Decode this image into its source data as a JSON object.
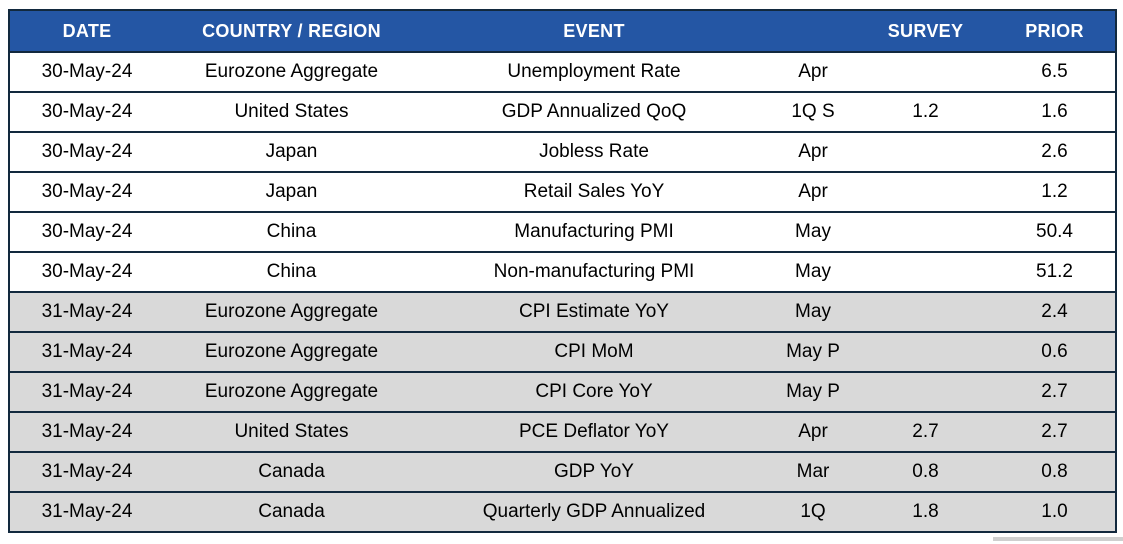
{
  "colors": {
    "header_bg": "#2456A4",
    "header_text": "#FFFFFF",
    "row_bg_white": "#FFFFFF",
    "row_bg_gray": "#D9D9D9",
    "border": "#12293E",
    "cell_text": "#000000"
  },
  "chart_data": {
    "type": "table",
    "title": "",
    "columns": [
      {
        "key": "date",
        "label": "DATE"
      },
      {
        "key": "country",
        "label": "COUNTRY / REGION"
      },
      {
        "key": "event",
        "label": "EVENT"
      },
      {
        "key": "period",
        "label": ""
      },
      {
        "key": "survey",
        "label": "SURVEY"
      },
      {
        "key": "prior",
        "label": "PRIOR"
      }
    ],
    "rows": [
      {
        "date": "30-May-24",
        "country": "Eurozone Aggregate",
        "event": "Unemployment Rate",
        "period": "Apr",
        "survey": "",
        "prior": "6.5",
        "shade": "white"
      },
      {
        "date": "30-May-24",
        "country": "United States",
        "event": "GDP Annualized QoQ",
        "period": "1Q S",
        "survey": "1.2",
        "prior": "1.6",
        "shade": "white"
      },
      {
        "date": "30-May-24",
        "country": "Japan",
        "event": "Jobless Rate",
        "period": "Apr",
        "survey": "",
        "prior": "2.6",
        "shade": "white"
      },
      {
        "date": "30-May-24",
        "country": "Japan",
        "event": "Retail Sales YoY",
        "period": "Apr",
        "survey": "",
        "prior": "1.2",
        "shade": "white"
      },
      {
        "date": "30-May-24",
        "country": "China",
        "event": "Manufacturing PMI",
        "period": "May",
        "survey": "",
        "prior": "50.4",
        "shade": "white"
      },
      {
        "date": "30-May-24",
        "country": "China",
        "event": "Non-manufacturing PMI",
        "period": "May",
        "survey": "",
        "prior": "51.2",
        "shade": "white"
      },
      {
        "date": "31-May-24",
        "country": "Eurozone Aggregate",
        "event": "CPI Estimate YoY",
        "period": "May",
        "survey": "",
        "prior": "2.4",
        "shade": "gray"
      },
      {
        "date": "31-May-24",
        "country": "Eurozone Aggregate",
        "event": "CPI MoM",
        "period": "May P",
        "survey": "",
        "prior": "0.6",
        "shade": "gray"
      },
      {
        "date": "31-May-24",
        "country": "Eurozone Aggregate",
        "event": "CPI Core YoY",
        "period": "May P",
        "survey": "",
        "prior": "2.7",
        "shade": "gray"
      },
      {
        "date": "31-May-24",
        "country": "United States",
        "event": "PCE Deflator YoY",
        "period": "Apr",
        "survey": "2.7",
        "prior": "2.7",
        "shade": "gray"
      },
      {
        "date": "31-May-24",
        "country": "Canada",
        "event": "GDP YoY",
        "period": "Mar",
        "survey": "0.8",
        "prior": "0.8",
        "shade": "gray"
      },
      {
        "date": "31-May-24",
        "country": "Canada",
        "event": "Quarterly GDP Annualized",
        "period": "1Q",
        "survey": "1.8",
        "prior": "1.0",
        "shade": "gray"
      }
    ]
  }
}
